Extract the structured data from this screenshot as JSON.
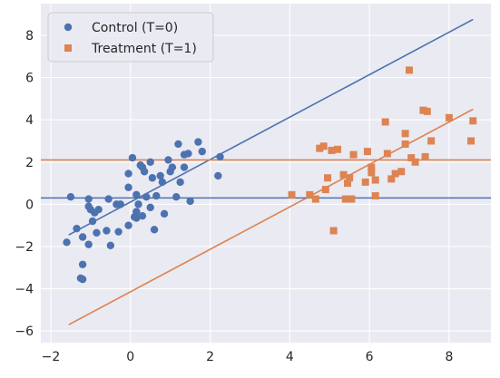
{
  "chart_data": {
    "type": "scatter",
    "title": "",
    "xlabel": "",
    "ylabel": "",
    "xlim": [
      -2.25,
      9.05
    ],
    "ylim": [
      -6.55,
      9.5
    ],
    "x_ticks": [
      -2,
      0,
      2,
      4,
      6,
      8
    ],
    "y_ticks": [
      -6,
      -4,
      -2,
      0,
      2,
      4,
      6,
      8
    ],
    "x_tick_labels": [
      "−2",
      "0",
      "2",
      "4",
      "6",
      "8"
    ],
    "y_tick_labels": [
      "−6",
      "−4",
      "−2",
      "0",
      "2",
      "4",
      "6",
      "8"
    ],
    "grid": true,
    "background": "#eaeaf2",
    "legend_placement": "top-left",
    "series": [
      {
        "name": "Control (T=0)",
        "marker": "circle",
        "color": "#4c72b0",
        "points": [
          [
            -1.6,
            -1.8
          ],
          [
            -1.5,
            0.35
          ],
          [
            -1.35,
            -1.15
          ],
          [
            -1.25,
            -3.5
          ],
          [
            -1.2,
            -3.55
          ],
          [
            -1.2,
            -2.85
          ],
          [
            -1.2,
            -1.55
          ],
          [
            -1.05,
            0.25
          ],
          [
            -1.05,
            -1.9
          ],
          [
            -1.05,
            -0.1
          ],
          [
            -1.0,
            -0.25
          ],
          [
            -0.95,
            -0.8
          ],
          [
            -0.9,
            -0.4
          ],
          [
            -0.85,
            -1.35
          ],
          [
            -0.8,
            -0.25
          ],
          [
            -0.6,
            -1.25
          ],
          [
            -0.55,
            0.25
          ],
          [
            -0.5,
            -1.95
          ],
          [
            -0.35,
            0.0
          ],
          [
            -0.3,
            -1.3
          ],
          [
            -0.25,
            0.0
          ],
          [
            -0.05,
            0.8
          ],
          [
            -0.05,
            -1.0
          ],
          [
            -0.05,
            1.45
          ],
          [
            0.05,
            2.2
          ],
          [
            0.1,
            -0.6
          ],
          [
            0.15,
            -0.35
          ],
          [
            0.15,
            0.45
          ],
          [
            0.15,
            -0.65
          ],
          [
            0.2,
            0.0
          ],
          [
            0.25,
            1.85
          ],
          [
            0.3,
            1.75
          ],
          [
            0.3,
            -0.55
          ],
          [
            0.35,
            1.55
          ],
          [
            0.4,
            0.35
          ],
          [
            0.5,
            -0.15
          ],
          [
            0.5,
            2.0
          ],
          [
            0.55,
            1.25
          ],
          [
            0.6,
            -1.2
          ],
          [
            0.65,
            0.4
          ],
          [
            0.75,
            1.35
          ],
          [
            0.8,
            1.05
          ],
          [
            0.85,
            -0.45
          ],
          [
            0.95,
            2.1
          ],
          [
            1.0,
            1.55
          ],
          [
            1.05,
            1.75
          ],
          [
            1.15,
            0.35
          ],
          [
            1.2,
            2.85
          ],
          [
            1.25,
            1.05
          ],
          [
            1.35,
            1.75
          ],
          [
            1.35,
            2.35
          ],
          [
            1.45,
            2.4
          ],
          [
            1.5,
            0.15
          ],
          [
            1.7,
            2.95
          ],
          [
            1.8,
            2.5
          ],
          [
            2.2,
            1.35
          ],
          [
            2.25,
            2.25
          ]
        ]
      },
      {
        "name": "Treatment (T=1)",
        "marker": "square",
        "color": "#dd8452",
        "points": [
          [
            4.05,
            0.45
          ],
          [
            4.5,
            0.45
          ],
          [
            4.65,
            0.25
          ],
          [
            4.75,
            2.65
          ],
          [
            4.85,
            2.75
          ],
          [
            4.9,
            0.7
          ],
          [
            4.95,
            1.25
          ],
          [
            5.05,
            2.55
          ],
          [
            5.1,
            -1.25
          ],
          [
            5.2,
            2.6
          ],
          [
            5.35,
            1.4
          ],
          [
            5.4,
            0.25
          ],
          [
            5.45,
            1.0
          ],
          [
            5.5,
            1.25
          ],
          [
            5.55,
            0.25
          ],
          [
            5.6,
            2.35
          ],
          [
            5.9,
            1.05
          ],
          [
            5.95,
            2.5
          ],
          [
            6.05,
            1.75
          ],
          [
            6.05,
            1.5
          ],
          [
            6.15,
            1.15
          ],
          [
            6.15,
            0.4
          ],
          [
            6.4,
            3.9
          ],
          [
            6.45,
            2.4
          ],
          [
            6.55,
            1.2
          ],
          [
            6.65,
            1.45
          ],
          [
            6.8,
            1.55
          ],
          [
            6.9,
            2.85
          ],
          [
            6.9,
            3.35
          ],
          [
            7.0,
            6.35
          ],
          [
            7.05,
            2.2
          ],
          [
            7.15,
            2.0
          ],
          [
            7.35,
            4.45
          ],
          [
            7.4,
            2.25
          ],
          [
            7.45,
            4.4
          ],
          [
            7.55,
            3.0
          ],
          [
            8.0,
            4.1
          ],
          [
            8.55,
            3.0
          ],
          [
            8.6,
            3.95
          ]
        ]
      }
    ],
    "lines": [
      {
        "kind": "segment",
        "color": "#4c72b0",
        "from": [
          -1.55,
          -1.45
        ],
        "to": [
          8.6,
          8.75
        ]
      },
      {
        "kind": "segment",
        "color": "#dd8452",
        "from": [
          -1.55,
          -5.7
        ],
        "to": [
          8.6,
          4.5
        ]
      },
      {
        "kind": "horizontal",
        "color": "#4c72b0",
        "y": 0.3
      },
      {
        "kind": "horizontal",
        "color": "#dd8452",
        "y": 2.1
      }
    ]
  }
}
